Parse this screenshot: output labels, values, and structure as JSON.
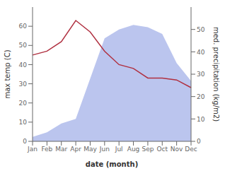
{
  "chart_data": {
    "type": "line",
    "categories": [
      "Jan",
      "Feb",
      "Mar",
      "Apr",
      "May",
      "Jun",
      "Jul",
      "Aug",
      "Sep",
      "Oct",
      "Nov",
      "Dec"
    ],
    "xlabel": "date (month)",
    "ylabel": "max temp (C)",
    "y2label": "med. precipitation (kg/m2)",
    "series": [
      {
        "type": "area",
        "axis": "y2",
        "color": "#bbc5ee",
        "values": [
          2,
          4,
          8,
          10,
          28,
          46,
          50,
          52,
          51,
          48,
          35,
          27
        ]
      },
      {
        "type": "line",
        "color": "#b03040",
        "values": [
          45,
          47,
          52,
          63,
          57,
          47,
          40,
          38,
          33,
          33,
          32,
          28
        ]
      }
    ],
    "ylim": [
      0,
      70
    ],
    "yticks": [
      0,
      10,
      20,
      30,
      40,
      50,
      60
    ],
    "y2lim": [
      0,
      60
    ],
    "y2ticks": [
      0,
      10,
      20,
      30,
      40,
      50
    ],
    "grid": false
  }
}
